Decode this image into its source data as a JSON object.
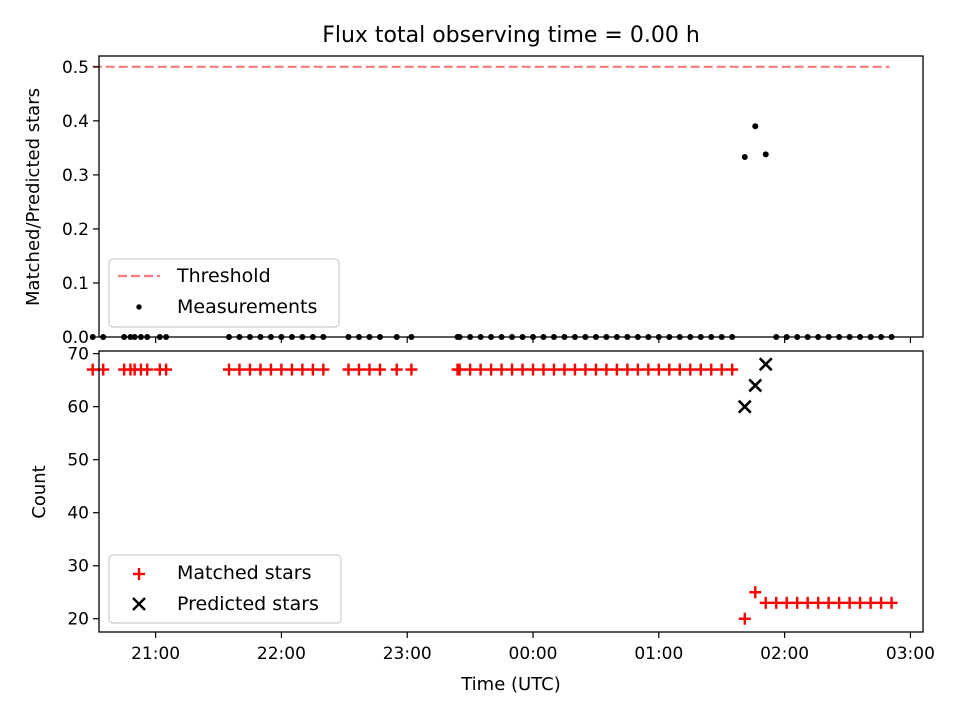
{
  "title": "Flux total observing time = 0.00 h",
  "colors": {
    "threshold": "#f77b7b",
    "measurement": "#000000",
    "matched": "#ff0000",
    "predicted": "#000000"
  },
  "chart_data": [
    {
      "type": "scatter",
      "ylabel": "Matched/Predicted stars",
      "ylim": [
        0,
        0.52
      ],
      "yticks": [
        0.0,
        0.1,
        0.2,
        0.3,
        0.4,
        0.5
      ],
      "ytick_labels": [
        "0.0",
        "0.1",
        "0.2",
        "0.3",
        "0.4",
        "0.5"
      ],
      "xlim": [
        "20:33",
        "03:06"
      ],
      "x_unit": "time (HH:MM UTC)",
      "legend": {
        "placement": "lower-left",
        "entries": [
          "Threshold",
          "Measurements"
        ]
      },
      "series": [
        {
          "name": "Threshold",
          "kind": "dashed-line",
          "x": [
            "20:30",
            "02:50"
          ],
          "y": [
            0.5,
            0.5
          ]
        },
        {
          "name": "Measurements",
          "kind": "dot",
          "x": [
            "20:30",
            "20:35",
            "20:45",
            "20:48",
            "20:50",
            "20:53",
            "20:56",
            "21:02",
            "21:05",
            "21:35",
            "21:40",
            "21:45",
            "21:50",
            "21:55",
            "22:00",
            "22:05",
            "22:10",
            "22:15",
            "22:20",
            "22:32",
            "22:37",
            "22:42",
            "22:47",
            "22:55",
            "23:02",
            "23:24",
            "23:25",
            "23:30",
            "23:35",
            "23:40",
            "23:45",
            "23:50",
            "23:55",
            "00:00",
            "00:05",
            "00:10",
            "00:15",
            "00:20",
            "00:25",
            "00:30",
            "00:35",
            "00:40",
            "00:45",
            "00:50",
            "00:55",
            "01:00",
            "01:05",
            "01:10",
            "01:15",
            "01:20",
            "01:25",
            "01:30",
            "01:35",
            "01:41",
            "01:46",
            "01:51",
            "01:56",
            "02:01",
            "02:06",
            "02:11",
            "02:16",
            "02:21",
            "02:26",
            "02:31",
            "02:36",
            "02:41",
            "02:46",
            "02:51"
          ],
          "y": [
            0,
            0,
            0,
            0,
            0,
            0,
            0,
            0,
            0,
            0,
            0,
            0,
            0,
            0,
            0,
            0,
            0,
            0,
            0,
            0,
            0,
            0,
            0,
            0,
            0,
            0,
            0,
            0,
            0,
            0,
            0,
            0,
            0,
            0,
            0,
            0,
            0,
            0,
            0,
            0,
            0,
            0,
            0,
            0,
            0,
            0,
            0,
            0,
            0,
            0,
            0,
            0,
            0,
            0.333,
            0.39,
            0.338,
            0,
            0,
            0,
            0,
            0,
            0,
            0,
            0,
            0,
            0,
            0,
            0
          ]
        }
      ]
    },
    {
      "type": "scatter",
      "xlabel": "Time (UTC)",
      "ylabel": "Count",
      "ylim": [
        17.5,
        70.5
      ],
      "yticks": [
        20,
        30,
        40,
        50,
        60,
        70
      ],
      "ytick_labels": [
        "20",
        "30",
        "40",
        "50",
        "60",
        "70"
      ],
      "xlim": [
        "20:33",
        "03:06"
      ],
      "xticks": [
        "21:00",
        "22:00",
        "23:00",
        "00:00",
        "01:00",
        "02:00",
        "03:00"
      ],
      "xtick_labels": [
        "21:00",
        "22:00",
        "23:00",
        "00:00",
        "01:00",
        "02:00",
        "03:00"
      ],
      "legend": {
        "placement": "lower-left",
        "entries": [
          "Matched stars",
          "Predicted stars"
        ]
      },
      "series": [
        {
          "name": "Matched stars",
          "kind": "plus",
          "x": [
            "20:30",
            "20:35",
            "20:45",
            "20:48",
            "20:50",
            "20:53",
            "20:56",
            "21:02",
            "21:05",
            "21:35",
            "21:40",
            "21:45",
            "21:50",
            "21:55",
            "22:00",
            "22:05",
            "22:10",
            "22:15",
            "22:20",
            "22:32",
            "22:37",
            "22:42",
            "22:47",
            "22:55",
            "23:02",
            "23:24",
            "23:25",
            "23:30",
            "23:35",
            "23:40",
            "23:45",
            "23:50",
            "23:55",
            "00:00",
            "00:05",
            "00:10",
            "00:15",
            "00:20",
            "00:25",
            "00:30",
            "00:35",
            "00:40",
            "00:45",
            "00:50",
            "00:55",
            "01:00",
            "01:05",
            "01:10",
            "01:15",
            "01:20",
            "01:25",
            "01:30",
            "01:35",
            "01:41",
            "01:46",
            "01:51",
            "01:56",
            "02:01",
            "02:06",
            "02:11",
            "02:16",
            "02:21",
            "02:26",
            "02:31",
            "02:36",
            "02:41",
            "02:46",
            "02:51"
          ],
          "y": [
            67,
            67,
            67,
            67,
            67,
            67,
            67,
            67,
            67,
            67,
            67,
            67,
            67,
            67,
            67,
            67,
            67,
            67,
            67,
            67,
            67,
            67,
            67,
            67,
            67,
            67,
            67,
            67,
            67,
            67,
            67,
            67,
            67,
            67,
            67,
            67,
            67,
            67,
            67,
            67,
            67,
            67,
            67,
            67,
            67,
            67,
            67,
            67,
            67,
            67,
            67,
            67,
            67,
            20,
            25,
            23,
            23,
            23,
            23,
            23,
            23,
            23,
            23,
            23,
            23,
            23,
            23,
            23
          ]
        },
        {
          "name": "Predicted stars",
          "kind": "x",
          "x": [
            "01:41",
            "01:46",
            "01:51"
          ],
          "y": [
            60,
            64,
            68
          ]
        }
      ]
    }
  ]
}
